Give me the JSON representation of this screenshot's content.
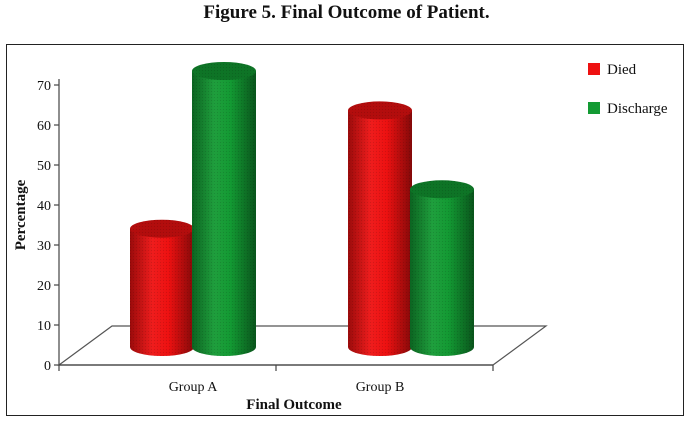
{
  "figure_title": "Figure 5. Final Outcome of Patient.",
  "chart_data": {
    "type": "bar",
    "title": "Figure 5. Final Outcome of Patient.",
    "xlabel": "Final Outcome",
    "ylabel": "Percentage",
    "categories": [
      "Group A",
      "Group B"
    ],
    "series": [
      {
        "name": "Died",
        "values": [
          30,
          60
        ],
        "color": "#ee1111"
      },
      {
        "name": "Discharge",
        "values": [
          70,
          40
        ],
        "color": "#139a33"
      }
    ],
    "ylim": [
      0,
      70
    ],
    "yticks": [
      0,
      10,
      20,
      30,
      40,
      50,
      60,
      70
    ],
    "grid": false,
    "legend_position": "top-right",
    "style": "3d-cylinder"
  }
}
